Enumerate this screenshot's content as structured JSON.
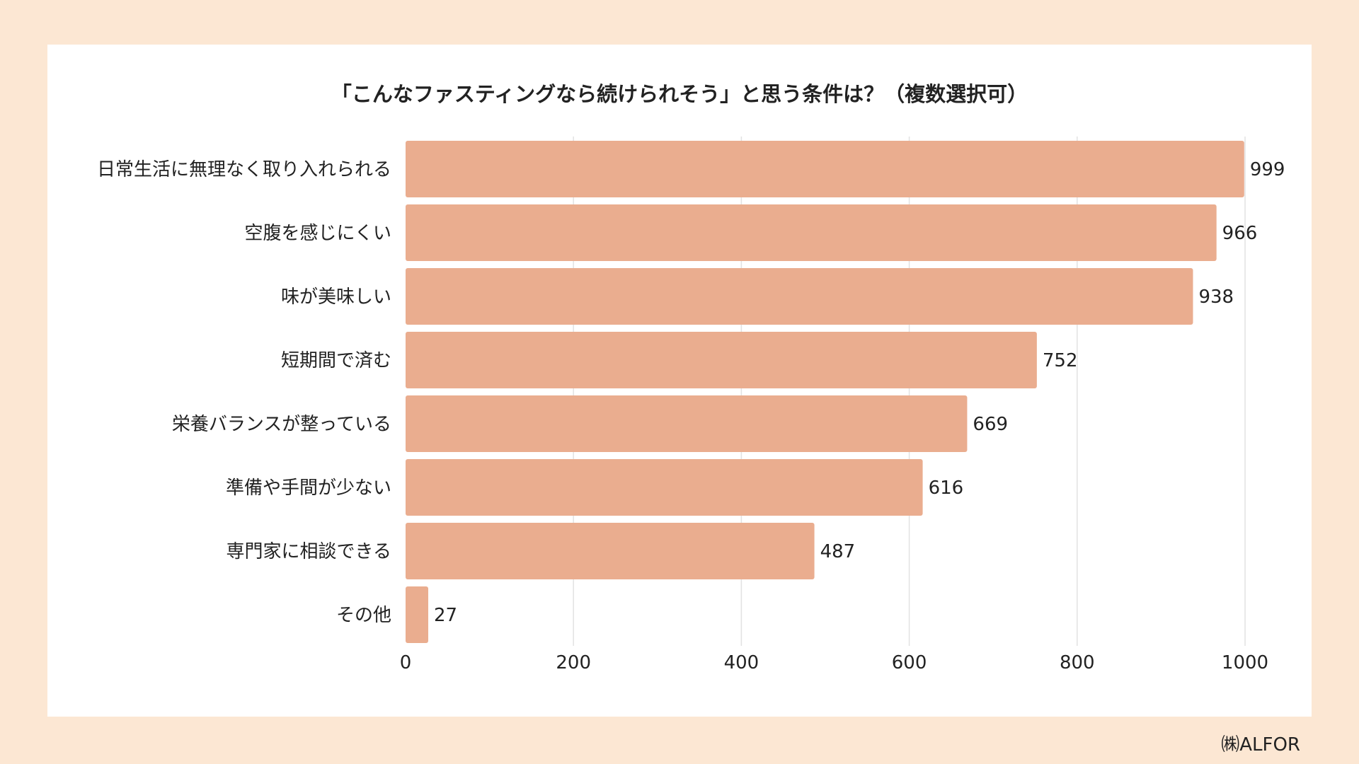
{
  "chart_data": {
    "type": "bar",
    "orientation": "horizontal",
    "title": "「こんなファスティングなら続けられそう」と思う条件は？（複数選択可）",
    "categories": [
      "日常生活に無理なく取り入れられる",
      "空腹を感じにくい",
      "味が美味しい",
      "短期間で済む",
      "栄養バランスが整っている",
      "準備や手間が少ない",
      "専門家に相談できる",
      "その他"
    ],
    "values": [
      999,
      966,
      938,
      752,
      669,
      616,
      487,
      27
    ],
    "xlim": [
      0,
      1000
    ],
    "xticks": [
      0,
      200,
      400,
      600,
      800,
      1000
    ],
    "grid": true,
    "bar_color": "#eaad8f",
    "grid_color": "#e2e2e2"
  },
  "footer": {
    "credit": "㈱ALFOR"
  },
  "colors": {
    "background": "#fce7d3",
    "card": "#ffffff"
  }
}
